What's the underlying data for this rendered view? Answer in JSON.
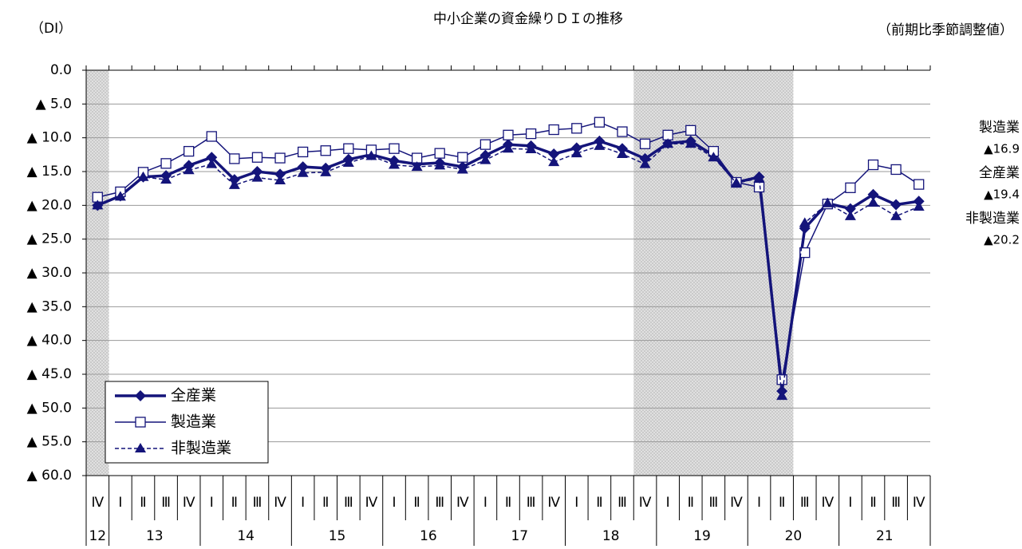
{
  "chart_data": {
    "type": "line",
    "title": "中小企業の資金繰りＤＩの推移",
    "y_unit": "（DI）",
    "note": "（前期比季節調整値）",
    "categories": [
      "Ⅳ",
      "Ⅰ",
      "Ⅱ",
      "Ⅲ",
      "Ⅳ",
      "Ⅰ",
      "Ⅱ",
      "Ⅲ",
      "Ⅳ",
      "Ⅰ",
      "Ⅱ",
      "Ⅲ",
      "Ⅳ",
      "Ⅰ",
      "Ⅱ",
      "Ⅲ",
      "Ⅳ",
      "Ⅰ",
      "Ⅱ",
      "Ⅲ",
      "Ⅳ",
      "Ⅰ",
      "Ⅱ",
      "Ⅲ",
      "Ⅳ",
      "Ⅰ",
      "Ⅱ",
      "Ⅲ",
      "Ⅳ",
      "Ⅰ",
      "Ⅱ",
      "Ⅲ",
      "Ⅳ",
      "Ⅰ",
      "Ⅱ",
      "Ⅲ",
      "Ⅳ"
    ],
    "year_labels": [
      "12",
      "13",
      null,
      null,
      null,
      "14",
      null,
      null,
      null,
      "15",
      null,
      null,
      null,
      "16",
      null,
      null,
      null,
      "17",
      null,
      null,
      null,
      "18",
      null,
      null,
      null,
      "19",
      null,
      null,
      null,
      "20",
      null,
      null,
      null,
      "21",
      null,
      null,
      null
    ],
    "shaded": [
      {
        "from": 0,
        "to": 0
      },
      {
        "from": 24,
        "to": 30
      }
    ],
    "ylim": [
      0,
      -60
    ],
    "yticks": [
      {
        "value": 0,
        "label": "0.0"
      },
      {
        "value": -5,
        "label": "▲ 5.0"
      },
      {
        "value": -10,
        "label": "▲ 10.0"
      },
      {
        "value": -15,
        "label": "▲ 15.0"
      },
      {
        "value": -20,
        "label": "▲ 20.0"
      },
      {
        "value": -25,
        "label": "▲ 25.0"
      },
      {
        "value": -30,
        "label": "▲ 30.0"
      },
      {
        "value": -35,
        "label": "▲ 35.0"
      },
      {
        "value": -40,
        "label": "▲ 40.0"
      },
      {
        "value": -45,
        "label": "▲ 45.0"
      },
      {
        "value": -50,
        "label": "▲ 50.0"
      },
      {
        "value": -55,
        "label": "▲ 55.0"
      },
      {
        "value": -60,
        "label": "▲ 60.0"
      }
    ],
    "grid": true,
    "legend": "lower-left",
    "series": [
      {
        "name": "全産業",
        "color": "#14147a",
        "marker": "diamond",
        "dash": false,
        "width": 3.5,
        "values": [
          -20.0,
          -18.6,
          -15.8,
          -15.6,
          -14.1,
          -12.9,
          -16.2,
          -15.0,
          -15.4,
          -14.3,
          -14.5,
          -13.2,
          -12.5,
          -13.4,
          -13.9,
          -13.7,
          -14.3,
          -12.6,
          -11.0,
          -11.2,
          -12.4,
          -11.5,
          -10.5,
          -11.6,
          -13.1,
          -10.8,
          -10.5,
          -12.6,
          -16.6,
          -15.8,
          -47.5,
          -23.4,
          -19.7,
          -20.5,
          -18.4,
          -19.9,
          -19.4
        ]
      },
      {
        "name": "製造業",
        "color": "#14147a",
        "marker": "square",
        "dash": false,
        "width": 1.5,
        "values": [
          -18.8,
          -18.0,
          -15.1,
          -13.8,
          -12.0,
          -9.8,
          -13.1,
          -12.9,
          -13.0,
          -12.1,
          -11.9,
          -11.6,
          -11.8,
          -11.6,
          -13.0,
          -12.3,
          -12.9,
          -11.0,
          -9.6,
          -9.4,
          -8.8,
          -8.6,
          -7.7,
          -9.1,
          -10.9,
          -9.6,
          -8.9,
          -12.0,
          -16.6,
          -17.3,
          -45.8,
          -27.0,
          -19.8,
          -17.4,
          -14.0,
          -14.7,
          -16.9
        ]
      },
      {
        "name": "非製造業",
        "color": "#14147a",
        "marker": "triangle",
        "dash": true,
        "width": 1.5,
        "values": [
          -20.0,
          -18.7,
          -15.8,
          -16.2,
          -14.8,
          -13.9,
          -17.0,
          -15.9,
          -16.3,
          -15.2,
          -15.1,
          -13.7,
          -12.7,
          -14.0,
          -14.3,
          -14.1,
          -14.7,
          -13.3,
          -11.6,
          -11.7,
          -13.6,
          -12.3,
          -11.2,
          -12.4,
          -13.9,
          -10.9,
          -10.9,
          -12.9,
          -16.7,
          -16.0,
          -48.2,
          -22.6,
          -19.7,
          -21.6,
          -19.6,
          -21.6,
          -20.2
        ]
      }
    ],
    "annotations": [
      {
        "name": "製造業",
        "value": "▲16.9"
      },
      {
        "name": "全産業",
        "value": "▲19.4"
      },
      {
        "name": "非製造業",
        "value": "▲20.2"
      }
    ]
  }
}
